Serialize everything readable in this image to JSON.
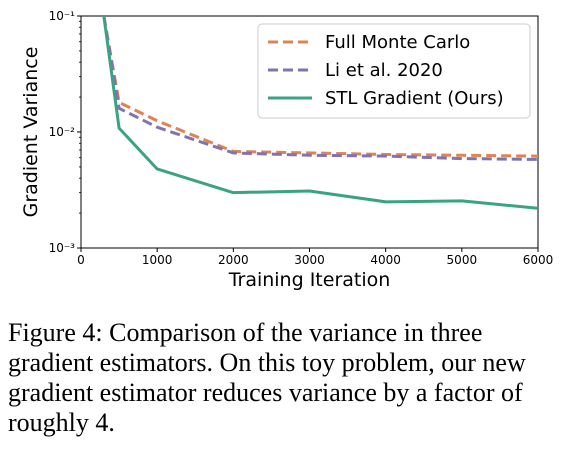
{
  "chart_data": {
    "type": "line",
    "xlabel": "Training Iteration",
    "ylabel": "Gradient Variance",
    "xlim": [
      0,
      6000
    ],
    "ylim": [
      0.001,
      0.1
    ],
    "yscale": "log",
    "x_ticks": [
      0,
      1000,
      2000,
      3000,
      4000,
      5000,
      6000
    ],
    "x_tick_labels": [
      "0",
      "1000",
      "2000",
      "3000",
      "4000",
      "5000",
      "6000"
    ],
    "y_ticks": [
      0.001,
      0.01,
      0.1
    ],
    "y_tick_labels": [
      "10⁻³",
      "10⁻²",
      "10⁻¹"
    ],
    "legend_position": "top-right",
    "grid": false,
    "series": [
      {
        "name": "Full Monte Carlo",
        "color": "#dd8452",
        "style": "dashed",
        "x": [
          300,
          500,
          1000,
          2000,
          3000,
          4000,
          5000,
          6000
        ],
        "values": [
          0.1,
          0.018,
          0.0125,
          0.0068,
          0.0066,
          0.0064,
          0.0063,
          0.0062
        ]
      },
      {
        "name": "Li et al. 2020",
        "color": "#8172b2",
        "style": "dashed",
        "x": [
          300,
          500,
          1000,
          2000,
          3000,
          4000,
          5000,
          6000
        ],
        "values": [
          0.1,
          0.016,
          0.011,
          0.0066,
          0.0063,
          0.0062,
          0.0059,
          0.0058
        ]
      },
      {
        "name": "STL Gradient (Ours)",
        "color": "#3aa383",
        "style": "solid",
        "x": [
          300,
          500,
          1000,
          2000,
          3000,
          4000,
          5000,
          6000
        ],
        "values": [
          0.1,
          0.0108,
          0.0048,
          0.003,
          0.0031,
          0.0025,
          0.00255,
          0.0022
        ]
      }
    ]
  },
  "caption": "Figure 4: Comparison of the variance in three gradient estimators. On this toy problem, our new gradient estimator reduces variance by a factor of roughly 4."
}
